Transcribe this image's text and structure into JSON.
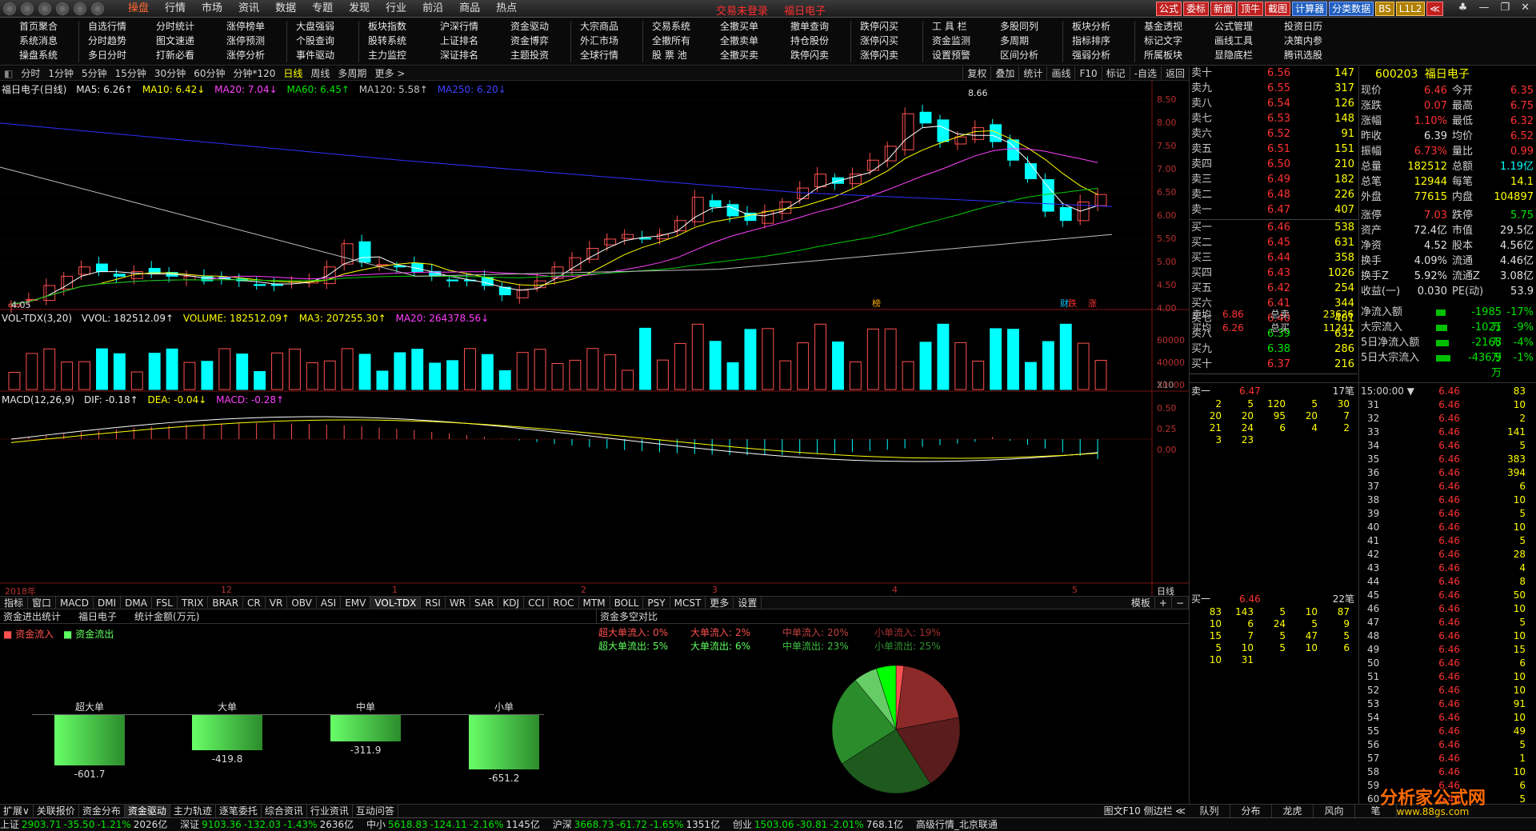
{
  "topmenu": [
    "操盘",
    "行情",
    "市场",
    "资讯",
    "数据",
    "专题",
    "发现",
    "行业",
    "前沿",
    "商品",
    "热点"
  ],
  "topmenu_active": 0,
  "title_parts": [
    "交易未登录",
    "福日电子"
  ],
  "toolbtns": [
    "公式",
    "委标",
    "新面",
    "顶牛",
    "截图",
    "计算器",
    "分类数据",
    "BS",
    "L1L2",
    "≪"
  ],
  "funcgrid": [
    [
      "首页聚合",
      "系统消息",
      "操盘系统"
    ],
    [
      "自选行情",
      "分时趋势",
      "多日分时"
    ],
    [
      "分时统计",
      "图文速递",
      "打新必看"
    ],
    [
      "涨停榜单",
      "涨停预测",
      "涨停分析"
    ],
    [
      "大盘强弱",
      "个股查询",
      "事件驱动"
    ],
    [
      "板块指数",
      "股转系统",
      "主力监控"
    ],
    [
      "沪深行情",
      "上证排名",
      "深证排名"
    ],
    [
      "资金驱动",
      "资金博弈",
      "主题投资"
    ],
    [
      "大宗商品",
      "外汇市场",
      "全球行情"
    ],
    [
      "交易系统",
      "全撤所有",
      "股 票 池"
    ],
    [
      "全撤买单",
      "全撤卖单",
      "全撤买卖"
    ],
    [
      "撤单查询",
      "持仓股份",
      "跌停闪卖"
    ],
    [
      "跌停闪买",
      "涨停闪买",
      "涨停闪卖"
    ],
    [
      "工 具 栏",
      "资金监测",
      "设置预警"
    ],
    [
      "多股同列",
      "多周期",
      "区间分析"
    ],
    [
      "板块分析",
      "指标排序",
      "强弱分析"
    ],
    [
      "基金透视",
      "标记文字",
      "所属板块"
    ],
    [
      "公式管理",
      "画线工具",
      "显隐底栏"
    ],
    [
      "投资日历",
      "决策内参",
      "腾讯选股"
    ]
  ],
  "periods": [
    "分时",
    "1分钟",
    "5分钟",
    "15分钟",
    "30分钟",
    "60分钟",
    "分钟*120",
    "日线",
    "周线",
    "多周期",
    "更多 >"
  ],
  "period_active": 7,
  "chart_tools": [
    "复权",
    "叠加",
    "统计",
    "画线",
    "F10",
    "标记",
    "-自选",
    "返回"
  ],
  "kline_legend": {
    "name": "福日电子(日线)",
    "ma5": "MA5: 6.26↑",
    "ma10": "MA10: 6.42↓",
    "ma20": "MA20: 7.04↓",
    "ma60": "MA60: 6.45↑",
    "ma120": "MA120: 5.58↑",
    "ma250": "MA250: 6.20↓"
  },
  "vol_legend": {
    "name": "VOL-TDX(3,20)",
    "vvol": "VVOL: 182512.09↑",
    "volume": "VOLUME: 182512.09↑",
    "ma3": "MA3: 207255.30↑",
    "ma20": "MA20: 264378.56↓"
  },
  "macd_legend": {
    "name": "MACD(12,26,9)",
    "dif": "DIF: -0.18↑",
    "dea": "DEA: -0.04↓",
    "macd": "MACD: -0.28↑"
  },
  "price_axis": [
    "8.50",
    "8.00",
    "7.50",
    "7.00",
    "6.50",
    "6.00",
    "5.50",
    "5.00",
    "4.50",
    "4.00"
  ],
  "vol_axis": [
    "60000",
    "40000",
    "20000"
  ],
  "vol_unit": "X10",
  "macd_axis": [
    "0.50",
    "0.25",
    "0.00"
  ],
  "high_label": "8.66",
  "low_label": "4.05",
  "time_axis": [
    "2018年",
    "12",
    "1",
    "2",
    "3",
    "4",
    "5"
  ],
  "time_axis_period": "日线",
  "chart_markers": [
    "榜",
    "财",
    "跌",
    "涨"
  ],
  "chart_data": {
    "type": "line",
    "title": "福日电子(日线)",
    "ylim": [
      4.0,
      8.6
    ],
    "close_series_approx": [
      4.1,
      4.2,
      4.5,
      4.7,
      4.9,
      4.8,
      4.7,
      4.8,
      4.75,
      4.7,
      4.7,
      4.6,
      4.65,
      4.6,
      4.5,
      4.5,
      4.6,
      4.6,
      4.9,
      5.4,
      5.0,
      4.95,
      4.9,
      4.8,
      4.7,
      4.6,
      4.6,
      4.5,
      4.3,
      4.4,
      4.6,
      4.9,
      5.1,
      5.3,
      5.5,
      5.6,
      5.5,
      5.6,
      5.9,
      6.4,
      6.2,
      6.0,
      5.9,
      6.1,
      6.3,
      6.6,
      6.9,
      6.7,
      6.9,
      7.2,
      7.5,
      8.2,
      8.0,
      7.6,
      7.7,
      7.9,
      7.6,
      7.2,
      6.8,
      6.1,
      5.9,
      6.3,
      6.46
    ]
  },
  "indicator_tabs": [
    "指标",
    "窗口",
    "MACD",
    "DMI",
    "DMA",
    "FSL",
    "TRIX",
    "BRAR",
    "CR",
    "VR",
    "OBV",
    "ASI",
    "EMV",
    "VOL-TDX",
    "RSI",
    "WR",
    "SAR",
    "KDJ",
    "CCI",
    "ROC",
    "MTM",
    "BOLL",
    "PSY",
    "MCST",
    "更多",
    "设置"
  ],
  "indicator_tabs_right": [
    "模板",
    "+",
    "−"
  ],
  "flow": {
    "tabs": [
      "资金进出统计",
      "福日电子",
      "统计金额(万元)"
    ],
    "legend_in": "资金流入",
    "legend_out": "资金流出",
    "cats": [
      "超大单",
      "大单",
      "中单",
      "小单"
    ],
    "values": [
      -601.7,
      -419.8,
      -311.9,
      -651.2
    ],
    "pie_title": "资金多空对比",
    "pie_legend": [
      [
        "超大单流入:",
        "0%"
      ],
      [
        "大单流入:",
        "2%"
      ],
      [
        "中单流入:",
        "20%"
      ],
      [
        "小单流入:",
        "19%"
      ],
      [
        "超大单流出:",
        "5%"
      ],
      [
        "大单流出:",
        "6%"
      ],
      [
        "中单流出:",
        "23%"
      ],
      [
        "小单流出:",
        "25%"
      ]
    ],
    "pie": [
      {
        "name": "大单流入",
        "value": 2,
        "color": "#ff5050"
      },
      {
        "name": "中单流入",
        "value": 20,
        "color": "#8c2a2a"
      },
      {
        "name": "小单流入",
        "value": 19,
        "color": "#5a1c1c"
      },
      {
        "name": "小单流出",
        "value": 25,
        "color": "#1e5a1e"
      },
      {
        "name": "中单流出",
        "value": 23,
        "color": "#2a8c2a"
      },
      {
        "name": "大单流出",
        "value": 6,
        "color": "#66cc66"
      },
      {
        "name": "超大单流出",
        "value": 5,
        "color": "#00ff00"
      }
    ]
  },
  "bottomtabs": [
    "扩展∨",
    "关联报价",
    "资金分布",
    "资金驱动",
    "主力轨迹",
    "逐笔委托",
    "综合资讯",
    "行业资讯",
    "互动问答"
  ],
  "bottom_right_note": "图文F10 侧边栏 ≪",
  "status": {
    "sh": [
      "上证",
      "2903.71",
      "-35.50",
      "-1.21%",
      "2026亿"
    ],
    "sz": [
      "深证",
      "9103.36",
      "-132.03",
      "-1.43%",
      "2636亿"
    ],
    "zx": [
      "中小",
      "5618.83",
      "-124.11",
      "-2.16%",
      "1145亿"
    ],
    "hs": [
      "沪深",
      "3668.73",
      "-61.72",
      "-1.65%",
      "1351亿"
    ],
    "cy": [
      "创业",
      "1503.06",
      "-30.81",
      "-2.01%",
      "768.1亿"
    ],
    "feed": "高级行情_北京联通"
  },
  "sell_levels": [
    [
      "卖十",
      "6.56",
      "147"
    ],
    [
      "卖九",
      "6.55",
      "317"
    ],
    [
      "卖八",
      "6.54",
      "126"
    ],
    [
      "卖七",
      "6.53",
      "148"
    ],
    [
      "卖六",
      "6.52",
      "91"
    ],
    [
      "卖五",
      "6.51",
      "151"
    ],
    [
      "卖四",
      "6.50",
      "210"
    ],
    [
      "卖三",
      "6.49",
      "182"
    ],
    [
      "卖二",
      "6.48",
      "226"
    ],
    [
      "卖一",
      "6.47",
      "407"
    ]
  ],
  "buy_levels": [
    [
      "买一",
      "6.46",
      "538"
    ],
    [
      "买二",
      "6.45",
      "631"
    ],
    [
      "买三",
      "6.44",
      "358"
    ],
    [
      "买四",
      "6.43",
      "1026"
    ],
    [
      "买五",
      "6.42",
      "254"
    ],
    [
      "买六",
      "6.41",
      "344"
    ],
    [
      "买七",
      "6.40",
      "401"
    ],
    [
      "买八",
      "6.39",
      "632"
    ],
    [
      "买九",
      "6.38",
      "286"
    ],
    [
      "买十",
      "6.37",
      "216"
    ]
  ],
  "avg_rows": [
    [
      "卖均",
      "6.86",
      "总卖",
      "23626"
    ],
    [
      "买均",
      "6.26",
      "总买",
      "11241"
    ]
  ],
  "quote": {
    "code": "600203",
    "name": "福日电子",
    "rows": [
      [
        "现价",
        "6.46",
        "今开",
        "6.35"
      ],
      [
        "涨跌",
        "0.07",
        "最高",
        "6.75"
      ],
      [
        "涨幅",
        "1.10%",
        "最低",
        "6.32"
      ],
      [
        "昨收",
        "6.39",
        "均价",
        "6.52"
      ],
      [
        "振幅",
        "6.73%",
        "量比",
        "0.99"
      ],
      [
        "总量",
        "182512",
        "总额",
        "1.19亿"
      ],
      [
        "总笔",
        "12944",
        "每笔",
        "14.1"
      ],
      [
        "外盘",
        "77615",
        "内盘",
        "104897"
      ],
      [
        "涨停",
        "7.03",
        "跌停",
        "5.75"
      ],
      [
        "资产",
        "72.4亿",
        "市值",
        "29.5亿"
      ],
      [
        "净资",
        "4.52",
        "股本",
        "4.56亿"
      ],
      [
        "换手",
        "4.09%",
        "流通",
        "4.46亿"
      ],
      [
        "换手Z",
        "5.92%",
        "流通Z",
        "3.08亿"
      ],
      [
        "收益(一)",
        "0.030",
        "PE(动)",
        "53.9"
      ]
    ],
    "flows": [
      [
        "净流入额",
        "-1985万",
        "-17%"
      ],
      [
        "大宗流入",
        "-1021万",
        "-9%"
      ],
      [
        "5日净流入额",
        "-2168万",
        "-4%"
      ],
      [
        "5日大宗流入",
        "-436.9万",
        "-1%"
      ]
    ]
  },
  "queue_sell": {
    "label": "卖一",
    "price": "6.47",
    "count": "17笔",
    "rows": [
      [
        "2",
        "5",
        "120",
        "5",
        "30"
      ],
      [
        "20",
        "20",
        "95",
        "20",
        "7"
      ],
      [
        "21",
        "24",
        "6",
        "4",
        "2"
      ],
      [
        "3",
        "23",
        "",
        "",
        ""
      ]
    ]
  },
  "queue_buy": {
    "label": "买一",
    "price": "6.46",
    "count": "22笔",
    "rows": [
      [
        "83",
        "143",
        "5",
        "10",
        "87"
      ],
      [
        "10",
        "6",
        "24",
        "5",
        "9"
      ],
      [
        "15",
        "7",
        "5",
        "47",
        "5"
      ],
      [
        "5",
        "10",
        "5",
        "10",
        "6"
      ],
      [
        "10",
        "31",
        "",
        "",
        ""
      ]
    ]
  },
  "tick_time": "15:00:00 ▼",
  "ticks": [
    [
      "",
      "6.46",
      "83"
    ],
    [
      "31",
      "6.46",
      "10"
    ],
    [
      "32",
      "6.46",
      "2"
    ],
    [
      "33",
      "6.46",
      "141"
    ],
    [
      "34",
      "6.46",
      "5"
    ],
    [
      "35",
      "6.46",
      "383"
    ],
    [
      "36",
      "6.46",
      "394"
    ],
    [
      "37",
      "6.46",
      "6"
    ],
    [
      "38",
      "6.46",
      "10"
    ],
    [
      "39",
      "6.46",
      "5"
    ],
    [
      "40",
      "6.46",
      "10"
    ],
    [
      "41",
      "6.46",
      "5"
    ],
    [
      "42",
      "6.46",
      "28"
    ],
    [
      "43",
      "6.46",
      "4"
    ],
    [
      "44",
      "6.46",
      "8"
    ],
    [
      "45",
      "6.46",
      "50"
    ],
    [
      "46",
      "6.46",
      "10"
    ],
    [
      "47",
      "6.46",
      "5"
    ],
    [
      "48",
      "6.46",
      "10"
    ],
    [
      "49",
      "6.46",
      "15"
    ],
    [
      "50",
      "6.46",
      "6"
    ],
    [
      "51",
      "6.46",
      "10"
    ],
    [
      "52",
      "6.46",
      "10"
    ],
    [
      "53",
      "6.46",
      "91"
    ],
    [
      "54",
      "6.46",
      "10"
    ],
    [
      "55",
      "6.46",
      "49"
    ],
    [
      "56",
      "6.46",
      "5"
    ],
    [
      "57",
      "6.46",
      "1"
    ],
    [
      "58",
      "6.46",
      "10"
    ],
    [
      "59",
      "6.46",
      "6"
    ],
    [
      "60",
      "6.46",
      "5"
    ]
  ],
  "rtabs": [
    "队列",
    "分布",
    "龙虎",
    "风向",
    "笔"
  ],
  "logo": {
    "title": "分析家公式网",
    "url": "www.88gs.com"
  }
}
